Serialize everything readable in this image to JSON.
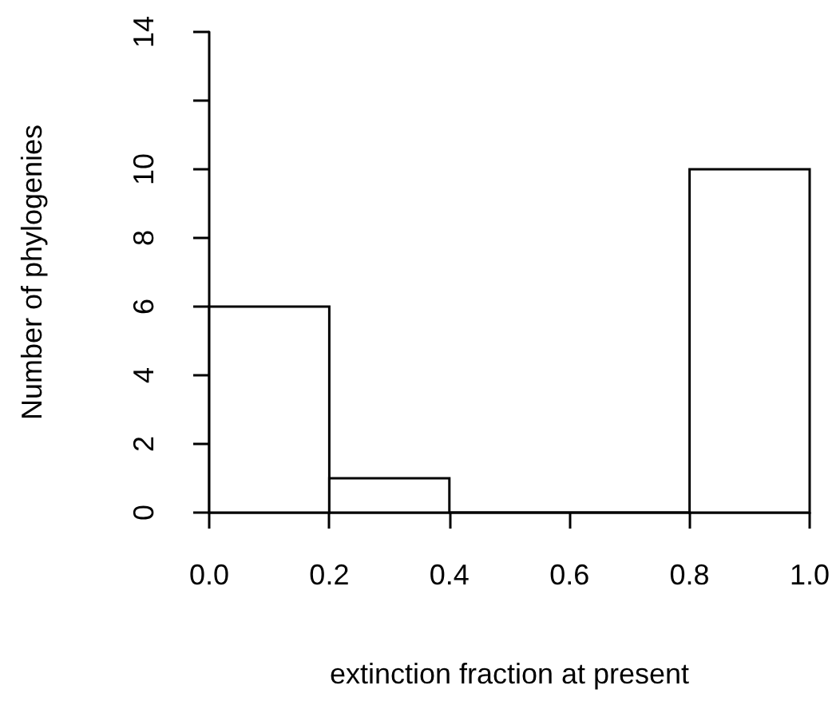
{
  "chart_data": {
    "type": "histogram",
    "xlabel": "extinction fraction at present",
    "ylabel": "Number of phylogenies",
    "bins": [
      0,
      0.2,
      0.4,
      0.6,
      0.8,
      1.0
    ],
    "values": [
      6,
      1,
      0,
      0,
      10
    ],
    "color": "#ffffff",
    "xlim": [
      0,
      1
    ],
    "xticks": [
      {
        "value": 0,
        "label": "0.0"
      },
      {
        "value": 0.2,
        "label": "0.2"
      },
      {
        "value": 0.4,
        "label": "0.4"
      },
      {
        "value": 0.6,
        "label": "0.6"
      },
      {
        "value": 0.8,
        "label": "0.8"
      },
      {
        "value": 1,
        "label": "1.0"
      }
    ],
    "ylim": [
      0,
      14
    ],
    "yticks": [
      0,
      2,
      4,
      6,
      8,
      10,
      {
        "value": 12,
        "label": null
      },
      14
    ],
    "grid": false
  }
}
